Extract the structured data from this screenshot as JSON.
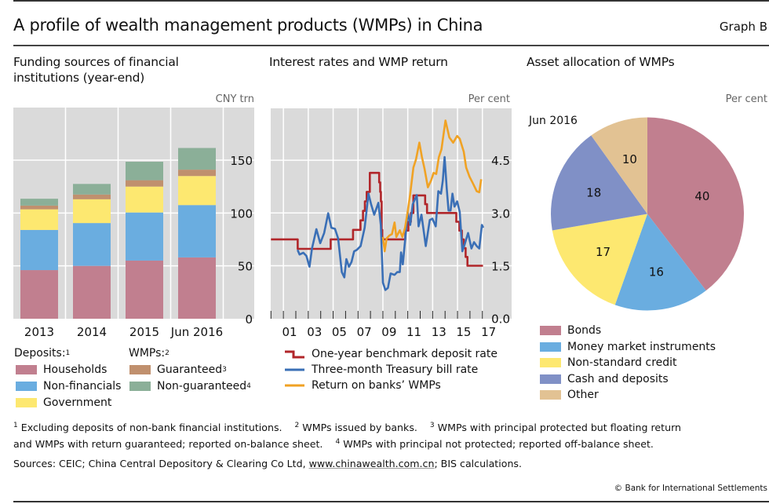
{
  "header": {
    "title": "A profile of wealth management products (WMPs) in China",
    "graph_id": "Graph B"
  },
  "colors": {
    "households": "#c17f8f",
    "non_financials": "#6aade0",
    "government": "#fde870",
    "guaranteed": "#c0906e",
    "non_guaranteed": "#8baf98",
    "deposit_rate": "#b1262a",
    "tbill_rate": "#3a6fb6",
    "wmp_return": "#f0a224",
    "bonds": "#c17f8f",
    "money_market": "#6aade0",
    "non_standard": "#fde870",
    "cash_deposits": "#8090c6",
    "other": "#e2c293",
    "plot_bg": "#dadada"
  },
  "panels": {
    "left": {
      "title_line1": "Funding sources of financial",
      "title_line2": "institutions (year-end)",
      "unit": "CNY trn",
      "legend": {
        "deposits_heading": "Deposits:",
        "deposits_sup": "1",
        "wmps_heading": "WMPs:",
        "wmps_sup": "2",
        "households": "Households",
        "non_financials": "Non-financials",
        "government": "Government",
        "guaranteed": "Guaranteed",
        "guaranteed_sup": "3",
        "non_guaranteed": "Non-guaranteed",
        "non_guaranteed_sup": "4"
      }
    },
    "middle": {
      "title": "Interest rates and WMP return",
      "unit": "Per cent",
      "legend": {
        "deposit_rate": "One-year benchmark deposit rate",
        "tbill_rate": "Three-month Treasury bill rate",
        "wmp_return": "Return on banks’ WMPs"
      }
    },
    "right": {
      "title": "Asset allocation of WMPs",
      "unit": "Per cent",
      "date_label": "Jun 2016",
      "legend": [
        "Bonds",
        "Money market instruments",
        "Non-standard credit",
        "Cash and deposits",
        "Other"
      ]
    }
  },
  "footnotes": {
    "line1": [
      {
        "sup": "1",
        "text": "Excluding deposits of non-bank financial institutions."
      },
      {
        "sup": "2",
        "text": "WMPs issued by banks."
      },
      {
        "sup": "3",
        "text": "WMPs with principal protected but floating return"
      }
    ],
    "line2_start": "and WMPs with return guaranteed; reported on-balance sheet.",
    "line2_sup": "4",
    "line2_end": "WMPs with principal not protected; reported off-balance sheet.",
    "sources_prefix": "Sources: CEIC; China Central Depository & Clearing Co Ltd, ",
    "sources_link": "www.chinawealth.com.cn",
    "sources_suffix": "; BIS calculations.",
    "copyright": "© Bank for International Settlements"
  },
  "chart_data": [
    {
      "type": "bar",
      "stacked": true,
      "title": "Funding sources of financial institutions (year-end)",
      "ylabel": "CNY trn",
      "ylim": [
        0,
        175
      ],
      "yticks": [
        0,
        50,
        100,
        150
      ],
      "ytick_labels": [
        "0",
        "50",
        "100",
        "150"
      ],
      "grid": true,
      "categories": [
        "2013",
        "2014",
        "2015",
        "Jun 2016"
      ],
      "series": [
        {
          "name": "Households",
          "group": "Deposits",
          "color_key": "households",
          "values": [
            46,
            50,
            55,
            58
          ]
        },
        {
          "name": "Non-financials",
          "group": "Deposits",
          "color_key": "non_financials",
          "values": [
            38,
            40.5,
            45.5,
            49.5
          ]
        },
        {
          "name": "Government",
          "group": "Deposits",
          "color_key": "government",
          "values": [
            19.5,
            22.5,
            24.5,
            27.5
          ]
        },
        {
          "name": "Guaranteed",
          "group": "WMPs",
          "color_key": "guaranteed",
          "values": [
            3.5,
            4.5,
            6,
            6
          ]
        },
        {
          "name": "Non-guaranteed",
          "group": "WMPs",
          "color_key": "non_guaranteed",
          "values": [
            6.5,
            10,
            17.5,
            20.5
          ]
        }
      ]
    },
    {
      "type": "line",
      "title": "Interest rates and WMP return",
      "ylabel": "Per cent",
      "xlim": [
        2000,
        2019.3
      ],
      "ylim": [
        0,
        6.95
      ],
      "yticks": [
        0,
        1.5,
        3.0,
        4.5
      ],
      "ytick_labels": [
        "0.0",
        "1.5",
        "3.0",
        "4.5"
      ],
      "xtick_labels": [
        "01",
        "03",
        "05",
        "07",
        "09",
        "11",
        "13",
        "15",
        "17"
      ],
      "xtick_label_years": [
        2001,
        2003,
        2005,
        2007,
        2009,
        2011,
        2013,
        2015,
        2017
      ],
      "grid": true,
      "series": [
        {
          "name": "One-year benchmark deposit rate",
          "style": "step",
          "color_key": "deposit_rate",
          "x": [
            2000.0,
            2002.15,
            2004.8,
            2006.6,
            2007.2,
            2007.4,
            2007.55,
            2007.7,
            2007.95,
            2008.7,
            2008.78,
            2008.84,
            2008.9,
            2008.95,
            2010.8,
            2011.05,
            2011.25,
            2011.45,
            2012.4,
            2012.55,
            2014.9,
            2015.15,
            2015.35,
            2015.5,
            2015.65,
            2015.8,
            2017.05
          ],
          "y": [
            2.25,
            1.98,
            2.25,
            2.52,
            2.79,
            3.06,
            3.33,
            3.6,
            4.14,
            3.87,
            3.6,
            3.33,
            2.52,
            2.25,
            2.5,
            2.75,
            3.0,
            3.5,
            3.25,
            3.0,
            2.75,
            2.5,
            2.25,
            2.0,
            1.75,
            1.5,
            1.5
          ]
        },
        {
          "name": "Three-month Treasury bill rate",
          "style": "line",
          "color_key": "tbill_rate",
          "x": [
            2002.14,
            2002.3,
            2002.6,
            2002.85,
            2003.1,
            2003.3,
            2003.65,
            2003.96,
            2004.28,
            2004.6,
            2004.86,
            2005.15,
            2005.4,
            2005.7,
            2005.9,
            2006.06,
            2006.27,
            2006.48,
            2006.69,
            2006.9,
            2007.21,
            2007.53,
            2007.84,
            2008.05,
            2008.3,
            2008.64,
            2008.83,
            2009.0,
            2009.2,
            2009.41,
            2009.62,
            2009.94,
            2010.15,
            2010.36,
            2010.46,
            2010.6,
            2010.78,
            2010.99,
            2011.2,
            2011.4,
            2011.72,
            2011.87,
            2012.1,
            2012.45,
            2012.77,
            2012.98,
            2013.25,
            2013.46,
            2013.67,
            2013.82,
            2013.96,
            2014.13,
            2014.28,
            2014.44,
            2014.59,
            2014.76,
            2014.97,
            2015.18,
            2015.39,
            2015.6,
            2015.85,
            2016.12,
            2016.33,
            2016.54,
            2016.75,
            2016.96,
            2017.07
          ],
          "y": [
            1.95,
            1.82,
            1.87,
            1.78,
            1.47,
            1.99,
            2.54,
            2.14,
            2.43,
            2.99,
            2.58,
            2.55,
            2.28,
            1.32,
            1.17,
            1.69,
            1.47,
            1.61,
            1.91,
            1.95,
            2.06,
            2.58,
            3.55,
            3.25,
            2.95,
            3.29,
            2.66,
            1.02,
            0.81,
            0.87,
            1.28,
            1.24,
            1.32,
            1.32,
            1.88,
            1.54,
            2.21,
            3.03,
            2.66,
            3.25,
            3.51,
            2.62,
            2.95,
            2.06,
            2.8,
            2.84,
            2.62,
            3.62,
            3.55,
            3.92,
            4.59,
            3.7,
            3.07,
            3.07,
            3.55,
            3.18,
            3.33,
            3.03,
            1.91,
            2.14,
            2.43,
            1.99,
            2.17,
            2.06,
            1.99,
            2.66,
            2.58
          ]
        },
        {
          "name": "Return on banks’ WMPs",
          "style": "line",
          "color_key": "wmp_return",
          "x": [
            2009.0,
            2009.14,
            2009.3,
            2009.52,
            2009.73,
            2009.94,
            2010.08,
            2010.36,
            2010.57,
            2010.78,
            2010.99,
            2011.2,
            2011.45,
            2011.66,
            2011.93,
            2012.14,
            2012.35,
            2012.62,
            2012.87,
            2013.08,
            2013.29,
            2013.5,
            2013.71,
            2014.03,
            2014.34,
            2014.65,
            2014.97,
            2015.18,
            2015.5,
            2015.7,
            2015.97,
            2016.23,
            2016.54,
            2016.75,
            2016.9
          ],
          "y": [
            2.32,
            1.91,
            2.28,
            2.36,
            2.4,
            2.73,
            2.32,
            2.51,
            2.32,
            2.58,
            3.03,
            3.55,
            4.29,
            4.52,
            5.0,
            4.59,
            4.26,
            3.73,
            3.92,
            4.14,
            4.11,
            4.59,
            4.81,
            5.63,
            5.15,
            5.0,
            5.19,
            5.11,
            4.74,
            4.29,
            4.03,
            3.85,
            3.62,
            3.59,
            3.96
          ]
        }
      ]
    },
    {
      "type": "pie",
      "title": "Asset allocation of WMPs",
      "subtitle": "Jun 2016",
      "unit": "Per cent",
      "start": "12 o'clock, clockwise",
      "labels": [
        "Bonds",
        "Money market instruments",
        "Non-standard credit",
        "Cash and deposits",
        "Other"
      ],
      "values": [
        40,
        16,
        17,
        18,
        10
      ],
      "data_labels": [
        "40",
        "16",
        "17",
        "18",
        "10"
      ],
      "color_keys": [
        "bonds",
        "money_market",
        "non_standard",
        "cash_deposits",
        "other"
      ],
      "legend_position": "bottom"
    }
  ]
}
